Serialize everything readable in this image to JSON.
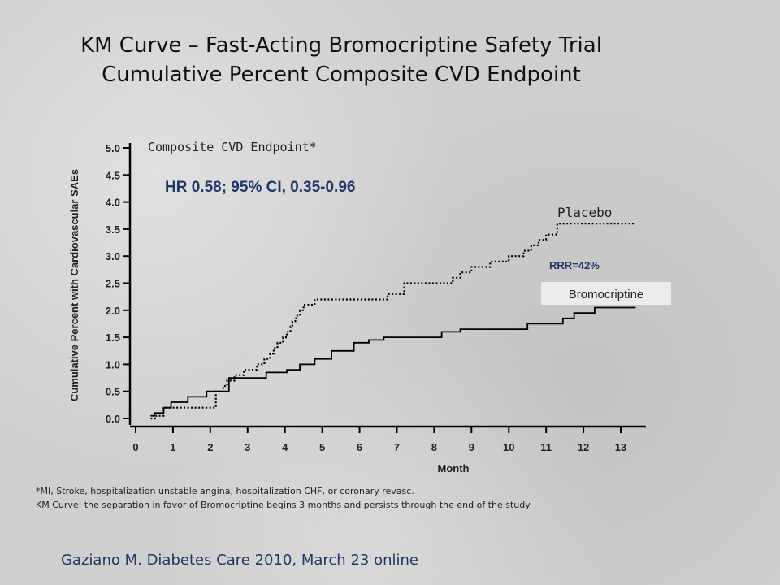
{
  "slide": {
    "title_line1": "KM Curve – Fast-Acting Bromocriptine Safety Trial",
    "title_line2": "Cumulative Percent Composite CVD Endpoint",
    "footnote_line1": "*MI, Stroke, hospitalization unstable angina, hospitalization CHF, or coronary revasc.",
    "footnote_line2": "KM Curve: the separation in favor of Bromocriptine begins 3 months and persists through the end of the study",
    "citation": "Gaziano M. Diabetes Care 2010, March 23 online"
  },
  "chart_data": {
    "type": "line",
    "title": "Composite CVD Endpoint*",
    "xlabel": "Month",
    "ylabel": "Cumulative Percent with Cardiovascular SAEs",
    "xlim": [
      0,
      13.5
    ],
    "ylim": [
      0,
      5.0
    ],
    "x_ticks": [
      0,
      1,
      2,
      3,
      4,
      5,
      6,
      7,
      8,
      9,
      10,
      11,
      12,
      13
    ],
    "y_ticks": [
      "0.0",
      "0.5",
      "1.0",
      "1.5",
      "2.0",
      "2.5",
      "3.0",
      "3.5",
      "4.0",
      "4.5",
      "5.0"
    ],
    "grid": false,
    "annotations": {
      "hr": "HR 0.58; 95% CI, 0.35-0.96",
      "rrr": "RRR=42%",
      "placebo_label": "Placebo",
      "bromocriptine_label": "Bromocriptine"
    },
    "colors": {
      "hr_text": "#1f3864",
      "rrr_text": "#1f3864",
      "label_box": "#ebebeb",
      "curve": "#000000"
    },
    "series": [
      {
        "name": "Placebo",
        "style": "dotted",
        "x": [
          0.4,
          0.55,
          0.75,
          2.15,
          2.35,
          2.45,
          2.65,
          2.9,
          3.25,
          3.45,
          3.6,
          3.7,
          3.8,
          3.95,
          4.05,
          4.15,
          4.2,
          4.3,
          4.4,
          4.5,
          4.8,
          6.75,
          7.2,
          8.5,
          8.7,
          9.0,
          9.5,
          10.0,
          10.4,
          10.6,
          10.8,
          11.0,
          11.3,
          13.4
        ],
        "y": [
          0.0,
          0.05,
          0.2,
          0.5,
          0.6,
          0.7,
          0.8,
          0.9,
          1.0,
          1.1,
          1.2,
          1.3,
          1.4,
          1.5,
          1.6,
          1.7,
          1.8,
          1.9,
          2.0,
          2.1,
          2.2,
          2.3,
          2.5,
          2.6,
          2.7,
          2.8,
          2.9,
          3.0,
          3.1,
          3.2,
          3.3,
          3.4,
          3.6,
          3.6
        ]
      },
      {
        "name": "Bromocriptine",
        "style": "solid",
        "x": [
          0.4,
          0.5,
          0.75,
          0.95,
          1.4,
          1.9,
          2.5,
          3.5,
          4.05,
          4.4,
          4.8,
          5.25,
          5.85,
          6.25,
          6.65,
          8.2,
          8.7,
          10.5,
          11.45,
          11.75,
          12.3,
          13.4
        ],
        "y": [
          0.05,
          0.1,
          0.2,
          0.3,
          0.4,
          0.5,
          0.75,
          0.85,
          0.9,
          1.0,
          1.1,
          1.25,
          1.4,
          1.45,
          1.5,
          1.6,
          1.65,
          1.75,
          1.85,
          1.95,
          2.05,
          2.05
        ]
      }
    ]
  }
}
